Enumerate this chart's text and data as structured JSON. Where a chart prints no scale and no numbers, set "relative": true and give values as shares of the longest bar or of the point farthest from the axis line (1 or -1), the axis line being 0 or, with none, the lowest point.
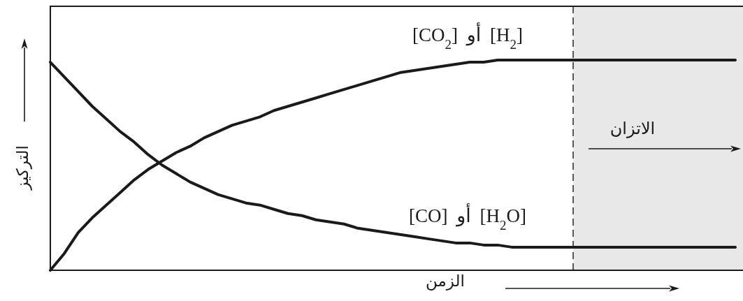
{
  "chart_data": {
    "type": "line",
    "relative": true,
    "xlabel": "الزمن",
    "ylabel": "التركيز",
    "categories": [
      null,
      null,
      null,
      null,
      null,
      null,
      null,
      null,
      null,
      null,
      null,
      null,
      null,
      null,
      null,
      null,
      null,
      null,
      null,
      null,
      null,
      null,
      null,
      null,
      null,
      null,
      null,
      null,
      null,
      null,
      null,
      null,
      null,
      null,
      null,
      null,
      null,
      null,
      null,
      null,
      null,
      null,
      null,
      null,
      null,
      null,
      null,
      null,
      null,
      null
    ],
    "series": [
      {
        "name": "[CO$_{2}$] أو [H$_{2}$]",
        "color": "#1a1a1a",
        "values": [
          0,
          0.08,
          0.18,
          0.25,
          0.31,
          0.37,
          0.43,
          0.48,
          0.52,
          0.56,
          0.59,
          0.63,
          0.66,
          0.69,
          0.71,
          0.73,
          0.76,
          0.78,
          0.8,
          0.82,
          0.84,
          0.86,
          0.88,
          0.9,
          0.92,
          0.94,
          0.95,
          0.96,
          0.97,
          0.98,
          0.99,
          0.99,
          1.0,
          1.0,
          1.0,
          1.0,
          1.0,
          1.0,
          1.0,
          1.0,
          1.0,
          1.0,
          1.0,
          1.0,
          1.0,
          1.0,
          1.0,
          1.0,
          1.0,
          1.0
        ]
      },
      {
        "name": "[CO] أو [H$_{2}$O]",
        "color": "#1a1a1a",
        "values": [
          0.99,
          0.92,
          0.85,
          0.78,
          0.72,
          0.66,
          0.61,
          0.55,
          0.5,
          0.46,
          0.42,
          0.39,
          0.36,
          0.34,
          0.32,
          0.31,
          0.29,
          0.27,
          0.26,
          0.24,
          0.23,
          0.22,
          0.2,
          0.19,
          0.18,
          0.17,
          0.16,
          0.15,
          0.14,
          0.13,
          0.13,
          0.12,
          0.12,
          0.11,
          0.11,
          0.11,
          0.11,
          0.11,
          0.11,
          0.11,
          0.11,
          0.11,
          0.11,
          0.11,
          0.11,
          0.11,
          0.11,
          0.11,
          0.11,
          0.11
        ]
      }
    ],
    "annotations": [
      "الاتزان"
    ]
  }
}
